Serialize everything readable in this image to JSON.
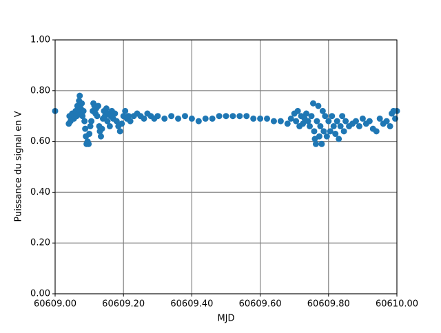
{
  "chart_data": {
    "type": "scatter",
    "xlabel": "MJD",
    "ylabel": "Puissance du signal en V",
    "color": "#1f77b4",
    "grid": true,
    "xlim": [
      60609.0,
      60610.0
    ],
    "xticks": [
      {
        "value": 60609.0,
        "label": "60609.00"
      },
      {
        "value": 60609.2,
        "label": "60609.20"
      },
      {
        "value": 60609.4,
        "label": "60609.40"
      },
      {
        "value": 60609.6,
        "label": "60609.60"
      },
      {
        "value": 60609.8,
        "label": "60609.80"
      },
      {
        "value": 60610.0,
        "label": "60610.00"
      }
    ],
    "ylim": [
      0,
      1
    ],
    "yticks": [
      {
        "value": 0,
        "label": "0.00"
      },
      {
        "value": 0.2,
        "label": "0.20"
      },
      {
        "value": 0.4,
        "label": "0.40"
      },
      {
        "value": 0.6,
        "label": "0.60"
      },
      {
        "value": 0.8,
        "label": "0.80"
      },
      {
        "value": 1,
        "label": "1.00"
      }
    ],
    "x": [
      60609.0,
      60609.04,
      60609.042,
      60609.045,
      60609.05,
      60609.055,
      60609.06,
      60609.063,
      60609.065,
      60609.068,
      60609.07,
      60609.072,
      60609.075,
      60609.078,
      60609.08,
      60609.083,
      60609.086,
      60609.088,
      60609.09,
      60609.092,
      60609.095,
      60609.098,
      60609.1,
      60609.103,
      60609.106,
      60609.11,
      60609.112,
      60609.115,
      60609.118,
      60609.12,
      60609.123,
      60609.126,
      60609.129,
      60609.131,
      60609.134,
      60609.137,
      60609.14,
      60609.143,
      60609.146,
      60609.15,
      60609.153,
      60609.156,
      60609.16,
      60609.163,
      60609.166,
      60609.17,
      60609.175,
      60609.18,
      60609.185,
      60609.19,
      60609.195,
      60609.2,
      60609.205,
      60609.21,
      60609.215,
      60609.22,
      60609.23,
      60609.24,
      60609.25,
      60609.26,
      60609.27,
      60609.28,
      60609.29,
      60609.3,
      60609.32,
      60609.34,
      60609.36,
      60609.38,
      60609.4,
      60609.42,
      60609.44,
      60609.46,
      60609.48,
      60609.5,
      60609.52,
      60609.54,
      60609.56,
      60609.58,
      60609.6,
      60609.62,
      60609.64,
      60609.66,
      60609.68,
      60609.69,
      60609.7,
      60609.705,
      60609.71,
      60609.715,
      60609.72,
      60609.725,
      60609.73,
      60609.735,
      60609.74,
      60609.745,
      60609.75,
      60609.755,
      60609.758,
      60609.76,
      60609.763,
      60609.766,
      60609.77,
      60609.773,
      60609.776,
      60609.78,
      60609.783,
      60609.786,
      60609.79,
      60609.795,
      60609.8,
      60609.805,
      60609.81,
      60609.815,
      60609.82,
      60609.825,
      60609.83,
      60609.835,
      60609.84,
      60609.845,
      60609.85,
      60609.86,
      60609.87,
      60609.88,
      60609.89,
      60609.9,
      60609.91,
      60609.92,
      60609.93,
      60609.94,
      60609.95,
      60609.96,
      60609.97,
      60609.98,
      60609.985,
      60609.99,
      60609.995,
      60610.0
    ],
    "values": [
      0.72,
      0.67,
      0.7,
      0.68,
      0.71,
      0.69,
      0.72,
      0.7,
      0.74,
      0.71,
      0.76,
      0.78,
      0.73,
      0.75,
      0.7,
      0.72,
      0.68,
      0.65,
      0.62,
      0.59,
      0.6,
      0.59,
      0.63,
      0.66,
      0.68,
      0.72,
      0.75,
      0.74,
      0.71,
      0.73,
      0.7,
      0.74,
      0.66,
      0.64,
      0.62,
      0.65,
      0.69,
      0.72,
      0.7,
      0.73,
      0.68,
      0.71,
      0.66,
      0.7,
      0.72,
      0.69,
      0.71,
      0.68,
      0.66,
      0.64,
      0.67,
      0.7,
      0.72,
      0.69,
      0.7,
      0.68,
      0.7,
      0.71,
      0.7,
      0.69,
      0.71,
      0.7,
      0.69,
      0.7,
      0.69,
      0.7,
      0.69,
      0.7,
      0.69,
      0.68,
      0.69,
      0.69,
      0.7,
      0.7,
      0.7,
      0.7,
      0.7,
      0.69,
      0.69,
      0.69,
      0.68,
      0.68,
      0.67,
      0.69,
      0.71,
      0.68,
      0.72,
      0.66,
      0.7,
      0.67,
      0.69,
      0.71,
      0.68,
      0.66,
      0.7,
      0.75,
      0.64,
      0.61,
      0.59,
      0.68,
      0.74,
      0.62,
      0.66,
      0.59,
      0.72,
      0.64,
      0.7,
      0.62,
      0.68,
      0.64,
      0.7,
      0.66,
      0.63,
      0.68,
      0.61,
      0.66,
      0.7,
      0.64,
      0.68,
      0.66,
      0.67,
      0.68,
      0.66,
      0.69,
      0.67,
      0.68,
      0.65,
      0.64,
      0.69,
      0.67,
      0.68,
      0.66,
      0.71,
      0.72,
      0.69,
      0.72
    ]
  }
}
